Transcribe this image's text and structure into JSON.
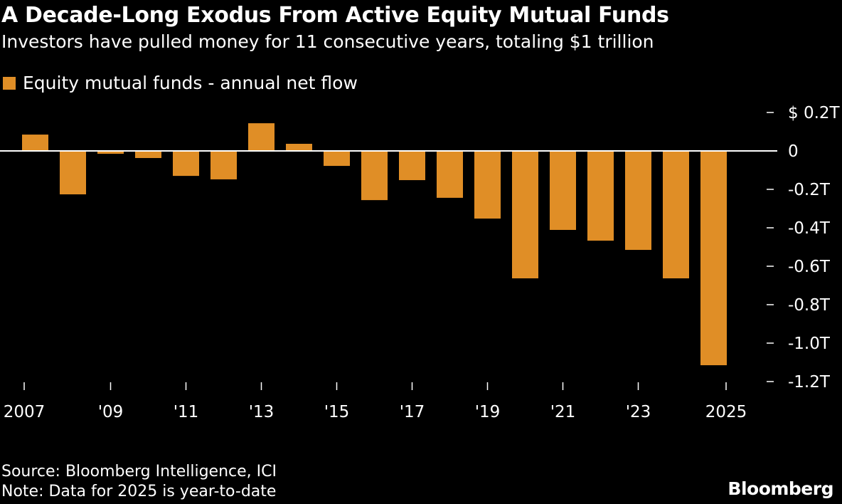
{
  "title": "A Decade-Long Exodus From Active Equity Mutual Funds",
  "subtitle": "Investors have pulled money for 11 consecutive years, totaling $1 trillion",
  "source": "Source: Bloomberg Intelligence, ICI",
  "note": "Note: Data for 2025 is year-to-date",
  "logo": "Bloomberg",
  "colors": {
    "bar": "#E08E26",
    "background": "#000000",
    "zero_line": "#FFFFFF"
  },
  "chart_data": {
    "type": "bar",
    "title": "A Decade-Long Exodus From Active Equity Mutual Funds",
    "legend": "top-left",
    "series": [
      {
        "name": "Equity mutual funds - annual net flow",
        "unit": "$T",
        "values": [
          0.085,
          -0.226,
          -0.015,
          -0.037,
          -0.13,
          -0.148,
          0.144,
          0.037,
          -0.078,
          -0.256,
          -0.152,
          -0.244,
          -0.352,
          -0.663,
          -0.411,
          -0.467,
          -0.515,
          -0.663,
          -1.115
        ]
      }
    ],
    "categories": [
      "2007",
      "2008",
      "2009",
      "2010",
      "2011",
      "2012",
      "2013",
      "2014",
      "2015",
      "2016",
      "2017",
      "2018",
      "2019",
      "2020",
      "2021",
      "2022",
      "2023",
      "2024",
      "2025"
    ],
    "x_tick_labels": [
      {
        "year": "2007",
        "label": "2007"
      },
      {
        "year": "2009",
        "label": "'09"
      },
      {
        "year": "2011",
        "label": "'11"
      },
      {
        "year": "2013",
        "label": "'13"
      },
      {
        "year": "2015",
        "label": "'15"
      },
      {
        "year": "2017",
        "label": "'17"
      },
      {
        "year": "2019",
        "label": "'19"
      },
      {
        "year": "2021",
        "label": "'21"
      },
      {
        "year": "2023",
        "label": "'23"
      },
      {
        "year": "2025",
        "label": "2025"
      }
    ],
    "y_ticks": [
      {
        "value": 0.2,
        "label": "$ 0.2T"
      },
      {
        "value": 0,
        "label": "0"
      },
      {
        "value": -0.2,
        "label": "-0.2T"
      },
      {
        "value": -0.4,
        "label": "-0.4T"
      },
      {
        "value": -0.6,
        "label": "-0.6T"
      },
      {
        "value": -0.8,
        "label": "-0.8T"
      },
      {
        "value": -1.0,
        "label": "-1.0T"
      },
      {
        "value": -1.2,
        "label": "-1.2T"
      }
    ],
    "ylim": [
      -1.2,
      0.2
    ],
    "y_axis_side": "right",
    "grid": false
  }
}
